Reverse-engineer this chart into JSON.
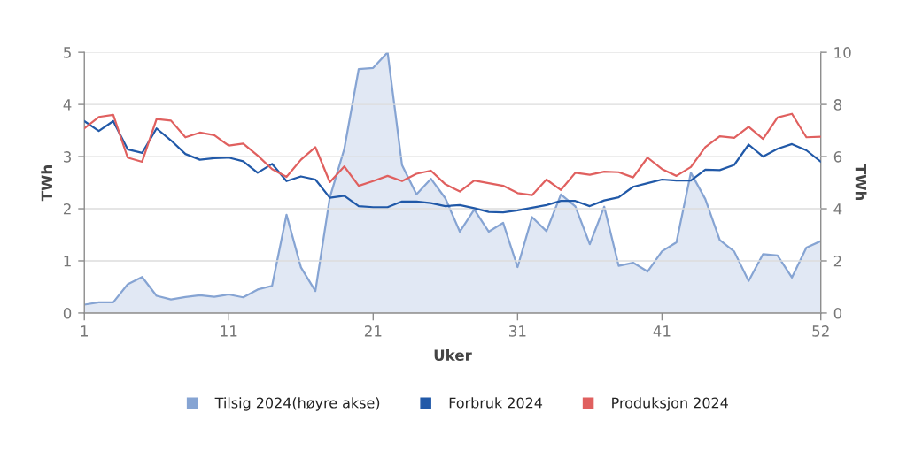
{
  "chart_data": {
    "type": "line",
    "x": [
      1,
      2,
      3,
      4,
      5,
      6,
      7,
      8,
      9,
      10,
      11,
      12,
      13,
      14,
      15,
      16,
      17,
      18,
      19,
      20,
      21,
      22,
      23,
      24,
      25,
      26,
      27,
      28,
      29,
      30,
      31,
      32,
      33,
      34,
      35,
      36,
      37,
      38,
      39,
      40,
      41,
      42,
      43,
      44,
      45,
      46,
      47,
      48,
      49,
      50,
      51,
      52
    ],
    "xlim": [
      1,
      52
    ],
    "xticks": [
      1,
      11,
      21,
      31,
      41,
      52
    ],
    "ylim": [
      0,
      5
    ],
    "yticks": [
      0,
      1,
      2,
      3,
      4,
      5
    ],
    "y2lim": [
      0,
      10
    ],
    "y2ticks": [
      0,
      2,
      4,
      6,
      8,
      10
    ],
    "xlabel": "Uker",
    "ylabel": "TWh",
    "y2label": "TWh",
    "grid": "y",
    "legend": "bottom",
    "series": [
      {
        "name": "Tilsig 2024(høyre akse)",
        "type": "area",
        "axis": "y2",
        "color": "#86a4d3",
        "values": [
          0.32,
          0.41,
          0.41,
          1.1,
          1.38,
          0.66,
          0.52,
          0.61,
          0.68,
          0.62,
          0.71,
          0.6,
          0.9,
          1.04,
          3.77,
          1.75,
          0.84,
          4.43,
          6.29,
          9.36,
          9.4,
          10.0,
          5.67,
          4.55,
          5.15,
          4.4,
          3.12,
          3.97,
          3.12,
          3.46,
          1.76,
          3.68,
          3.14,
          4.55,
          4.09,
          2.64,
          4.08,
          1.81,
          1.93,
          1.59,
          2.37,
          2.71,
          5.38,
          4.37,
          2.8,
          2.36,
          1.23,
          2.26,
          2.21,
          1.36,
          2.51,
          2.76
        ]
      },
      {
        "name": "Forbruk 2024",
        "color": "#2159a8",
        "values": [
          3.68,
          3.49,
          3.68,
          3.14,
          3.07,
          3.54,
          3.31,
          3.05,
          2.94,
          2.97,
          2.98,
          2.91,
          2.69,
          2.86,
          2.53,
          2.62,
          2.56,
          2.21,
          2.25,
          2.05,
          2.03,
          2.03,
          2.14,
          2.14,
          2.11,
          2.05,
          2.07,
          2.01,
          1.94,
          1.93,
          1.97,
          2.02,
          2.07,
          2.15,
          2.15,
          2.05,
          2.16,
          2.22,
          2.42,
          2.49,
          2.56,
          2.54,
          2.54,
          2.75,
          2.74,
          2.84,
          3.23,
          3.0,
          3.15,
          3.24,
          3.12,
          2.9
        ]
      },
      {
        "name": "Produksjon 2024",
        "color": "#e0605f",
        "values": [
          3.54,
          3.76,
          3.8,
          2.98,
          2.9,
          3.72,
          3.69,
          3.37,
          3.46,
          3.41,
          3.21,
          3.25,
          3.02,
          2.76,
          2.61,
          2.94,
          3.18,
          2.51,
          2.81,
          2.44,
          2.53,
          2.63,
          2.53,
          2.67,
          2.73,
          2.47,
          2.33,
          2.54,
          2.49,
          2.44,
          2.3,
          2.26,
          2.56,
          2.36,
          2.69,
          2.65,
          2.71,
          2.7,
          2.6,
          2.98,
          2.76,
          2.63,
          2.8,
          3.18,
          3.39,
          3.36,
          3.57,
          3.34,
          3.75,
          3.82,
          3.37,
          3.38
        ]
      }
    ]
  }
}
